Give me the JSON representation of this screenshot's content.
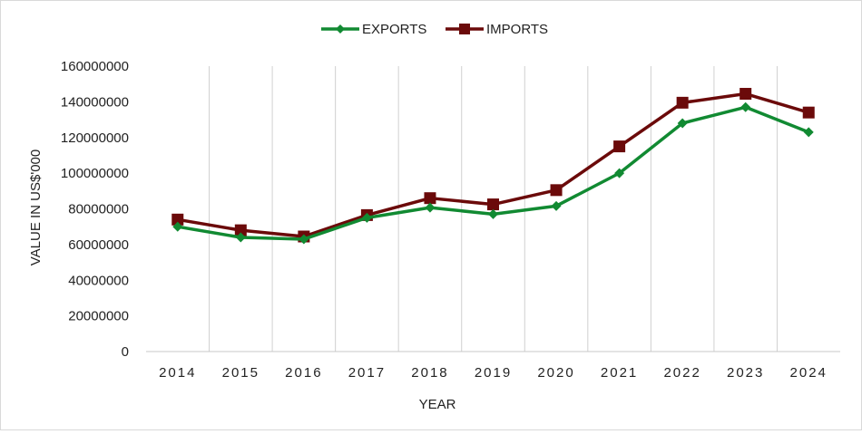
{
  "chart_data": {
    "type": "line",
    "title": "",
    "xlabel": "YEAR",
    "ylabel": "VALUE IN US$'000",
    "ylim": [
      0,
      160000000
    ],
    "yticks": [
      "0",
      "20000000",
      "40000000",
      "60000000",
      "80000000",
      "100000000",
      "120000000",
      "140000000",
      "160000000"
    ],
    "categories": [
      "2014",
      "2015",
      "2016",
      "2017",
      "2018",
      "2019",
      "2020",
      "2021",
      "2022",
      "2023",
      "2024"
    ],
    "grid": "vertical",
    "legend": "top",
    "series": [
      {
        "name": "EXPORTS",
        "color": "#118a32",
        "marker": "diamond",
        "values": [
          70000000,
          64000000,
          63000000,
          75000000,
          80700000,
          77000000,
          81600000,
          100000000,
          128000000,
          137000000,
          123000000
        ]
      },
      {
        "name": "IMPORTS",
        "color": "#6b0a0a",
        "marker": "square",
        "values": [
          74000000,
          68000000,
          64500000,
          76500000,
          86000000,
          82500000,
          90500000,
          115000000,
          139500000,
          144500000,
          134000000
        ]
      }
    ]
  }
}
